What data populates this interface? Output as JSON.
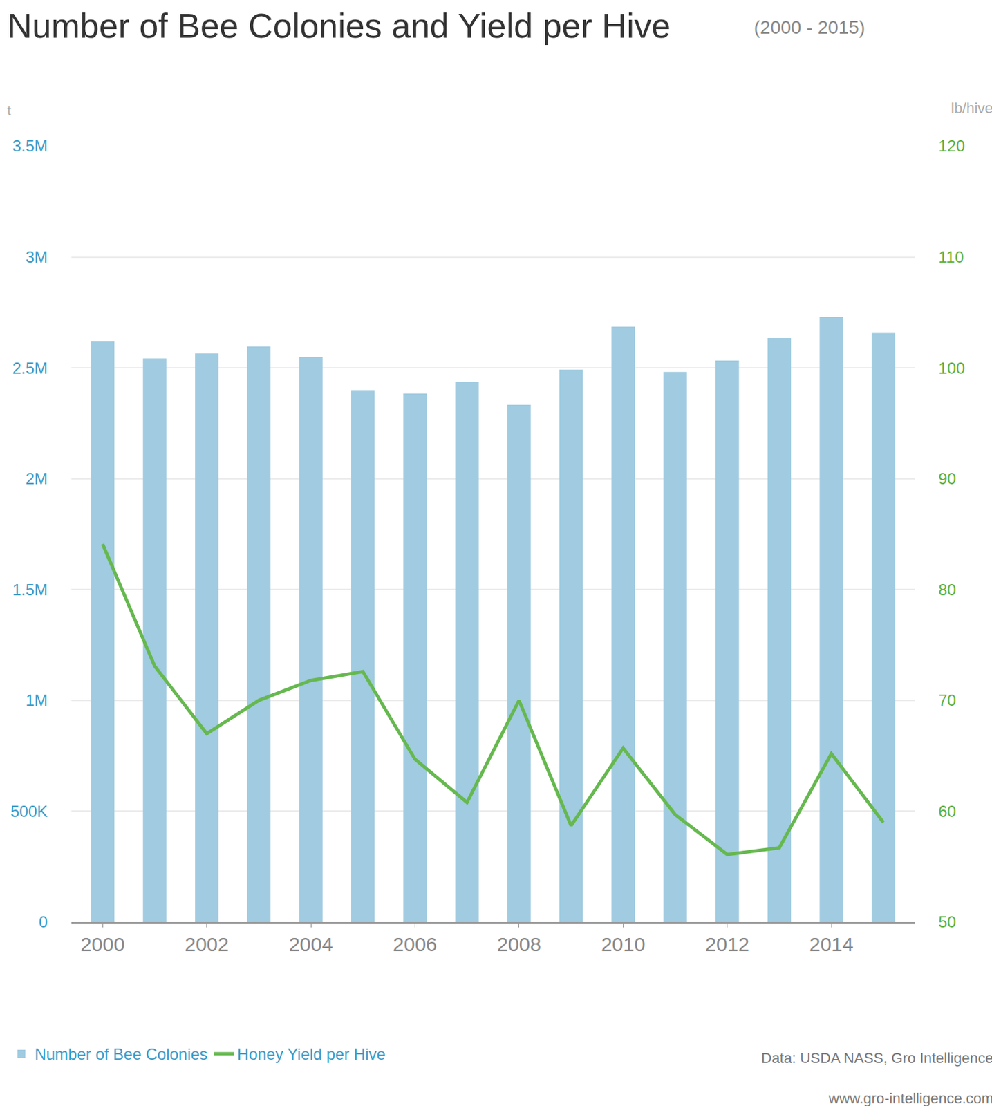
{
  "chart_data": {
    "type": "bar",
    "title": "Number of Bee Colonies and Yield per Hive",
    "subtitle": "(2000 - 2015)",
    "ylabel": "t",
    "y2label": "lb/hive",
    "annotations": [
      "Data: USDA NASS, Gro Intelligence",
      "www.gro-intelligence.com"
    ],
    "x": [
      2000,
      2001,
      2002,
      2003,
      2004,
      2005,
      2006,
      2007,
      2008,
      2009,
      2010,
      2011,
      2012,
      2013,
      2014,
      2015
    ],
    "xlim": [
      1999.4,
      2015.6
    ],
    "xticks": [
      2000,
      2002,
      2004,
      2006,
      2008,
      2010,
      2012,
      2014
    ],
    "ylim": [
      0,
      3500000
    ],
    "yticks": [
      0,
      {
        "value": 500000,
        "label": "500K"
      },
      {
        "value": 1000000,
        "label": "1M"
      },
      {
        "value": 1500000,
        "label": "1.5M"
      },
      {
        "value": 2000000,
        "label": "2M"
      },
      {
        "value": 2500000,
        "label": "2.5M"
      },
      {
        "value": 3000000,
        "label": "3M"
      },
      {
        "value": 3500000,
        "label": "3.5M"
      }
    ],
    "y2lim": [
      50,
      120
    ],
    "y2ticks": [
      50,
      60,
      70,
      80,
      90,
      100,
      110,
      120
    ],
    "grid": true,
    "legend": "bottom left",
    "series": [
      {
        "name": "Number of Bee Colonies",
        "type": "bar",
        "color": "#a0cbe0",
        "values": [
          2619000,
          2543000,
          2565000,
          2597000,
          2549000,
          2400000,
          2384000,
          2438000,
          2333000,
          2492000,
          2686000,
          2482000,
          2533000,
          2635000,
          2730000,
          2657000
        ]
      },
      {
        "name": "Honey Yield per Hive",
        "type": "line",
        "color": "#66b84f",
        "axis": "y2",
        "values": [
          84.1,
          73.1,
          67.0,
          70.0,
          71.8,
          72.6,
          64.7,
          60.8,
          70.0,
          58.7,
          65.7,
          59.7,
          56.1,
          56.7,
          65.2,
          59.0
        ]
      }
    ]
  }
}
